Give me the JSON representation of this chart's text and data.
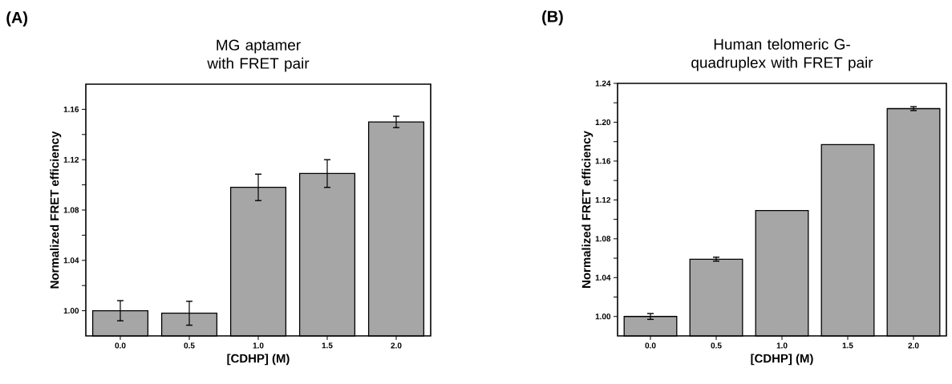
{
  "chart_data": [
    {
      "type": "bar",
      "title": "MG aptamer with FRET pair",
      "xlabel": "[CDHP] (M)",
      "ylabel": "Normalized FRET efficiency",
      "categories": [
        "0.0",
        "0.5",
        "1.0",
        "1.5",
        "2.0"
      ],
      "values": [
        1.0,
        0.998,
        1.098,
        1.109,
        1.15
      ],
      "errors": [
        0.008,
        0.0095,
        0.0105,
        0.011,
        0.0045
      ],
      "color": "#a6a6a6",
      "ylim": [
        0.98,
        1.18
      ],
      "yticks": [
        {
          "value": 1.0,
          "label": "1.00"
        },
        {
          "value": 1.02,
          "label": null
        },
        1.04,
        {
          "value": 1.06,
          "label": null
        },
        1.08,
        {
          "value": 1.1,
          "label": null
        },
        1.12,
        {
          "value": 1.14,
          "label": null
        },
        1.16
      ],
      "annotations": [
        "(A)"
      ]
    },
    {
      "type": "bar",
      "title": "Human telomeric G-quadruplex with FRET pair",
      "xlabel": "[CDHP] (M)",
      "ylabel": "Normalized FRET efficiency",
      "categories": [
        "0.0",
        "0.5",
        "1.0",
        "1.5",
        "2.0"
      ],
      "values": [
        1.0,
        1.059,
        1.109,
        1.177,
        1.214
      ],
      "errors": [
        0.003,
        0.002,
        null,
        null,
        0.002
      ],
      "color": "#a6a6a6",
      "ylim": [
        0.98,
        1.24
      ],
      "yticks": [
        {
          "value": 1.0,
          "label": "1.00"
        },
        {
          "value": 1.02,
          "label": null
        },
        1.04,
        {
          "value": 1.06,
          "label": null
        },
        1.08,
        {
          "value": 1.1,
          "label": null
        },
        1.12,
        {
          "value": 1.14,
          "label": null
        },
        1.16,
        {
          "value": 1.18,
          "label": null
        },
        {
          "value": 1.2,
          "label": "1.20"
        },
        {
          "value": 1.22,
          "label": null
        },
        1.24
      ],
      "annotations": [
        "(B)"
      ]
    }
  ]
}
